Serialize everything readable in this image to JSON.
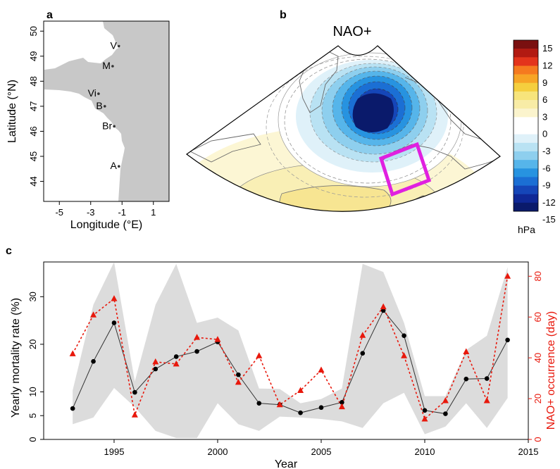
{
  "panels": {
    "a": "a",
    "b": "b",
    "c": "c"
  },
  "chart_data": [
    {
      "type": "scatter",
      "panel": "a",
      "xlabel": "Longitude (°E)",
      "ylabel": "Latitude (°N)",
      "xlim": [
        -6,
        2
      ],
      "ylim": [
        43.2,
        50.4
      ],
      "xticks": [
        -5,
        -3,
        -1,
        1
      ],
      "yticks": [
        44,
        45,
        46,
        47,
        48,
        49,
        50
      ],
      "sites": [
        {
          "label": "V",
          "lon": -1.2,
          "lat": 49.4
        },
        {
          "label": "M",
          "lon": -1.6,
          "lat": 48.6
        },
        {
          "label": "Vi",
          "lon": -2.5,
          "lat": 47.5
        },
        {
          "label": "B",
          "lon": -2.1,
          "lat": 47.0
        },
        {
          "label": "Br",
          "lon": -1.5,
          "lat": 46.2
        },
        {
          "label": "A",
          "lon": -1.2,
          "lat": 44.6
        }
      ],
      "colors": {
        "land": "#c8c8c8"
      }
    },
    {
      "type": "heatmap",
      "panel": "b",
      "title": "NAO+",
      "colorbar_label": "hPa",
      "colorbar_ticks": [
        "15",
        "12",
        "9",
        "6",
        "3",
        "0",
        "-3",
        "-6",
        "-9",
        "-12",
        "-15"
      ],
      "colorbar_colors": [
        "#7a1010",
        "#b21a12",
        "#e3341c",
        "#f57a1f",
        "#f7a526",
        "#f5cf3e",
        "#f7e47b",
        "#f8eca6",
        "#fbf4cd",
        "#ffffff",
        "#ffffff",
        "#dff1f9",
        "#b9e2f3",
        "#8ecfee",
        "#56b5ea",
        "#2793e0",
        "#1b6fd4",
        "#1546b8",
        "#0f2896",
        "#0a1a6b"
      ],
      "region_box_color": "#e020e0"
    },
    {
      "type": "line",
      "panel": "c",
      "xlabel": "Year",
      "ylabel": "Yearly mortality rate (%)",
      "y2label": "NAO+ occurrence (day)",
      "xlim": [
        1991.6,
        2015
      ],
      "ylim": [
        0,
        37.3
      ],
      "y2lim": [
        0,
        87
      ],
      "xticks": [
        1995,
        2000,
        2005,
        2010,
        2015
      ],
      "yticks": [
        0,
        5,
        10,
        20,
        30
      ],
      "y2ticks": [
        0,
        20,
        40,
        60,
        80
      ],
      "x": [
        1993,
        1994,
        1995,
        1996,
        1997,
        1998,
        1999,
        2000,
        2001,
        2002,
        2003,
        2004,
        2005,
        2006,
        2007,
        2008,
        2009,
        2010,
        2011,
        2012,
        2013,
        2014
      ],
      "series": [
        {
          "axis": "left",
          "color": "#333333",
          "values": [
            6.5,
            16.4,
            24.5,
            9.9,
            14.8,
            17.4,
            18.5,
            20.5,
            13.6,
            7.6,
            7.3,
            5.6,
            6.7,
            7.8,
            18.1,
            27.1,
            21.8,
            6.1,
            5.4,
            12.7,
            12.8,
            20.9
          ],
          "band_lower": [
            3.2,
            4.6,
            10.8,
            6.8,
            1.8,
            0.3,
            0.3,
            7.6,
            3.2,
            1.8,
            4.8,
            4.6,
            4.3,
            3.8,
            2.4,
            7.6,
            9.8,
            1.1,
            2.7,
            7.6,
            2.4,
            8.7
          ],
          "band_upper": [
            10.3,
            28.3,
            37.3,
            12.2,
            28.3,
            36.9,
            24.5,
            25.6,
            22.9,
            10.7,
            10.6,
            7.6,
            8.5,
            10.7,
            36.9,
            35.2,
            24.5,
            9.1,
            9.1,
            18.8,
            21.8,
            36.2
          ]
        },
        {
          "axis": "right",
          "color": "#e8180c",
          "values": [
            42,
            61,
            69,
            12,
            38,
            37,
            50,
            49,
            28,
            41,
            17,
            24,
            34,
            16,
            51,
            65,
            41,
            10,
            19,
            43,
            19,
            80
          ]
        }
      ],
      "band_color": "#dcdcdc"
    }
  ]
}
